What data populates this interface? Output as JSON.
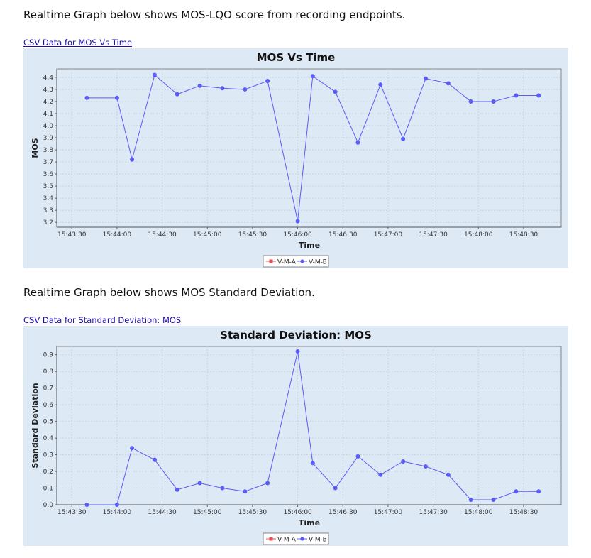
{
  "sections": [
    {
      "intro": "Realtime Graph below shows MOS-LQO score from recording endpoints.",
      "link": "CSV Data for MOS Vs Time"
    },
    {
      "intro": "Realtime Graph below shows MOS Standard Deviation.",
      "link": "CSV Data for Standard Deviation: MOS"
    }
  ],
  "colors": {
    "series_a": "#e05050",
    "series_b": "#5b5bf5",
    "panel_bg": "#dee9f6",
    "link": "#1a0dab"
  },
  "chart_data": [
    {
      "type": "line",
      "title": "MOS Vs Time",
      "xlabel": "Time",
      "ylabel": "MOS",
      "x_ticks": [
        "15:43:30",
        "15:44:00",
        "15:44:30",
        "15:45:00",
        "15:45:30",
        "15:46:00",
        "15:46:30",
        "15:47:00",
        "15:47:30",
        "15:48:00",
        "15:48:30"
      ],
      "y_ticks": [
        "3.2",
        "3.3",
        "3.4",
        "3.5",
        "3.6",
        "3.7",
        "3.8",
        "3.9",
        "4.0",
        "4.1",
        "4.2",
        "4.3",
        "4.4"
      ],
      "xlim": [
        "15:43:20",
        "15:48:55"
      ],
      "ylim": [
        3.16,
        4.47
      ],
      "grid": true,
      "legend": "bottom-center",
      "legend_entries": [
        "V-M-A",
        "V-M-B"
      ],
      "series": [
        {
          "name": "V-M-B",
          "x": [
            "15:43:40",
            "15:44:00",
            "15:44:10",
            "15:44:25",
            "15:44:40",
            "15:44:55",
            "15:45:10",
            "15:45:25",
            "15:45:40",
            "15:46:00",
            "15:46:10",
            "15:46:25",
            "15:46:40",
            "15:46:55",
            "15:47:10",
            "15:47:25",
            "15:47:40",
            "15:47:55",
            "15:48:10",
            "15:48:25",
            "15:48:40"
          ],
          "values": [
            4.23,
            4.23,
            3.72,
            4.42,
            4.26,
            4.33,
            4.31,
            4.3,
            4.37,
            3.21,
            4.41,
            4.28,
            3.86,
            4.34,
            3.89,
            4.39,
            4.35,
            4.2,
            4.2,
            4.25,
            4.25
          ]
        }
      ]
    },
    {
      "type": "line",
      "title": "Standard Deviation: MOS",
      "xlabel": "Time",
      "ylabel": "Standard Deviation",
      "x_ticks": [
        "15:43:30",
        "15:44:00",
        "15:44:30",
        "15:45:00",
        "15:45:30",
        "15:46:00",
        "15:46:30",
        "15:47:00",
        "15:47:30",
        "15:48:00",
        "15:48:30"
      ],
      "y_ticks": [
        "0.0",
        "0.1",
        "0.2",
        "0.3",
        "0.4",
        "0.5",
        "0.6",
        "0.7",
        "0.8",
        "0.9"
      ],
      "xlim": [
        "15:43:20",
        "15:48:55"
      ],
      "ylim": [
        0.0,
        0.95
      ],
      "grid": true,
      "legend": "bottom-center",
      "legend_entries": [
        "V-M-A",
        "V-M-B"
      ],
      "series": [
        {
          "name": "V-M-B",
          "x": [
            "15:43:40",
            "15:44:00",
            "15:44:10",
            "15:44:25",
            "15:44:40",
            "15:44:55",
            "15:45:10",
            "15:45:25",
            "15:45:40",
            "15:46:00",
            "15:46:10",
            "15:46:25",
            "15:46:40",
            "15:46:55",
            "15:47:10",
            "15:47:25",
            "15:47:40",
            "15:47:55",
            "15:48:10",
            "15:48:25",
            "15:48:40"
          ],
          "values": [
            0.0,
            0.0,
            0.34,
            0.27,
            0.09,
            0.13,
            0.1,
            0.08,
            0.13,
            0.92,
            0.25,
            0.1,
            0.29,
            0.18,
            0.26,
            0.23,
            0.18,
            0.03,
            0.03,
            0.08,
            0.08
          ]
        }
      ]
    }
  ]
}
